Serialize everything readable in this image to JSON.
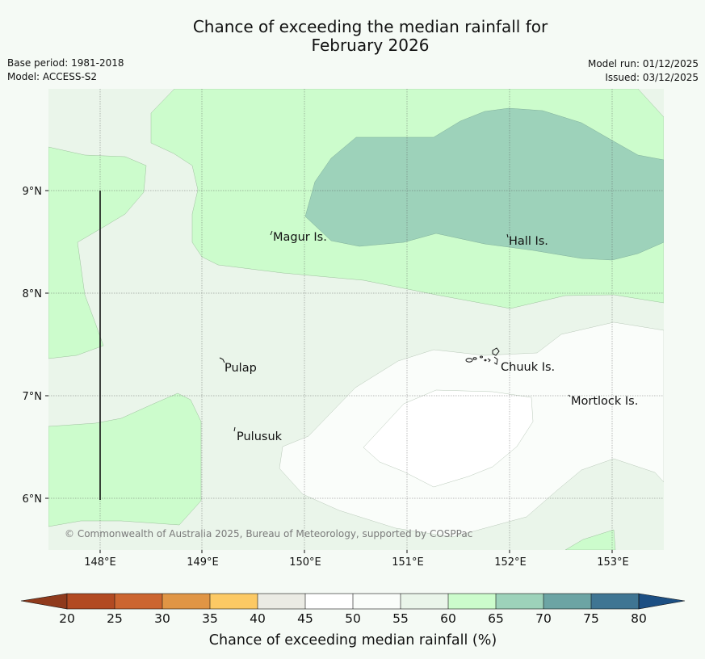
{
  "header": {
    "title_line1": "Chance of exceeding the median rainfall for",
    "title_line2": "February 2026",
    "base_period": "Base period: 1981-2018",
    "model": "Model: ACCESS-S2",
    "model_run": "Model run: 01/12/2025",
    "issued": "Issued: 03/12/2025"
  },
  "map": {
    "lon_ticks": [
      "148°E",
      "149°E",
      "150°E",
      "151°E",
      "152°E",
      "153°E"
    ],
    "lat_ticks": [
      "9°N",
      "8°N",
      "7°N",
      "6°N"
    ],
    "places": {
      "magur": "Magur Is.",
      "hall": "Hall Is.",
      "pulap": "Pulap",
      "chuuk": "Chuuk Is.",
      "mortlock": "Mortlock Is.",
      "pulusuk": "Pulusuk"
    },
    "credit": "© Commonwealth of Australia 2025, Bureau of Meteorology, supported by COSPPac"
  },
  "legend": {
    "title": "Chance of exceeding median rainfall (%)",
    "tick_labels": [
      "20",
      "25",
      "30",
      "35",
      "40",
      "45",
      "50",
      "55",
      "60",
      "65",
      "70",
      "75",
      "80"
    ],
    "colors": {
      "below_20": "#8f3a1c",
      "20_25": "#b24a22",
      "25_30": "#cc6530",
      "30_35": "#e09545",
      "35_40": "#fcc964",
      "40_45": "#ebebe4",
      "45_50": "#ffffff",
      "50_55": "#fafdfa",
      "55_60": "#eaf5ea",
      "60_65": "#ccfccc",
      "65_70": "#9dd2ba",
      "70_75": "#6ca4a4",
      "75_80": "#3f7593",
      "above_80": "#1c4f83"
    }
  }
}
